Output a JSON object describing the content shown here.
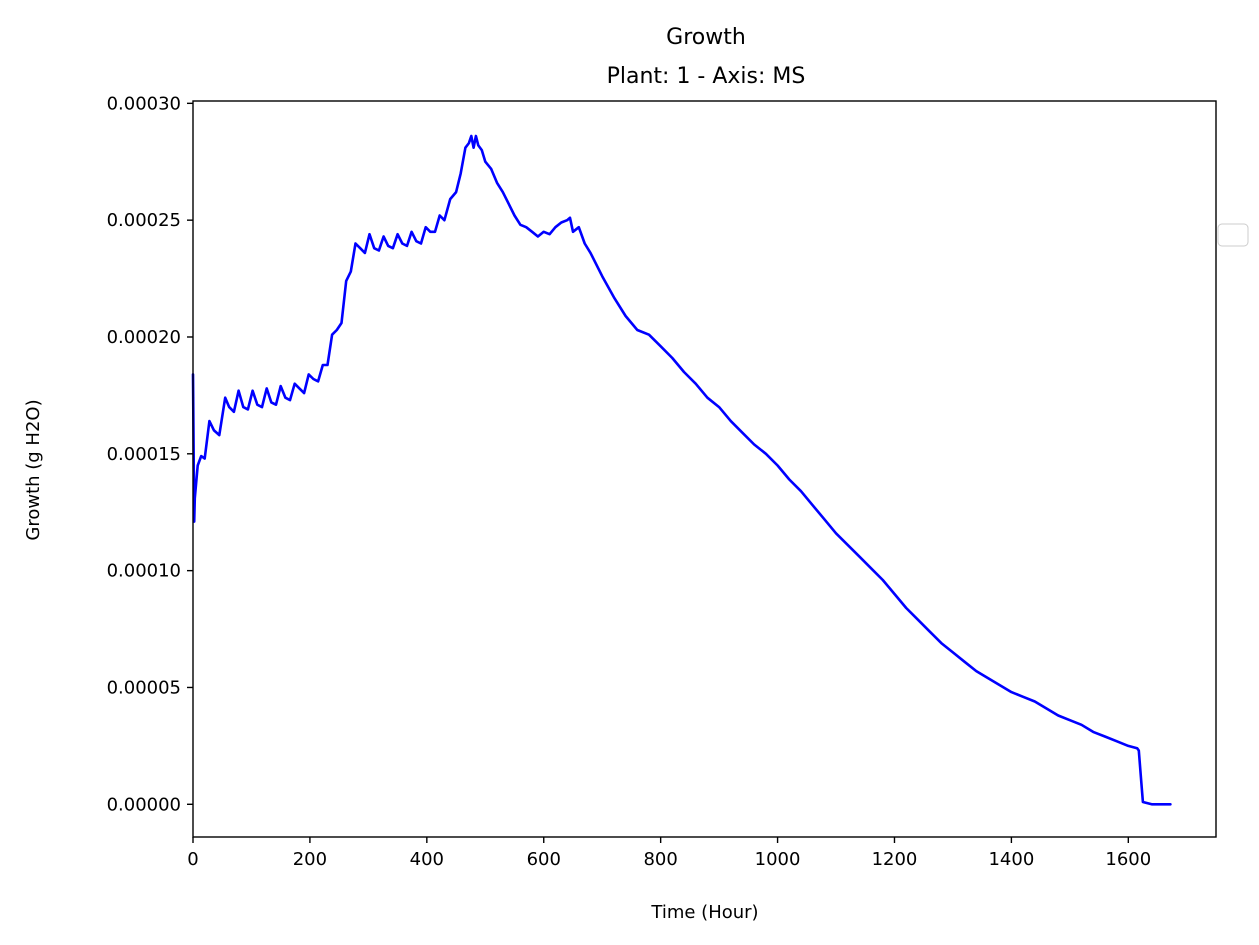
{
  "chart_data": {
    "type": "line",
    "title": "Growth",
    "subtitle": "Plant: 1 - Axis: MS",
    "xlabel": "Time (Hour)",
    "ylabel": "Growth (g H2O)",
    "xlim": [
      0,
      1750
    ],
    "ylim": [
      -1.4e-05,
      0.000301
    ],
    "xticks": [
      "0",
      "200",
      "400",
      "600",
      "800",
      "1000",
      "1200",
      "1400",
      "1600"
    ],
    "yticks": [
      "0.00000",
      "0.00005",
      "0.00010",
      "0.00015",
      "0.00020",
      "0.00025",
      "0.00030"
    ],
    "grid": false,
    "legend": {
      "position": "right",
      "entries": []
    },
    "series": [
      {
        "color": "#0000ff",
        "x": [
          0,
          2,
          3,
          8,
          14,
          20,
          28,
          36,
          45,
          55,
          62,
          70,
          78,
          86,
          94,
          102,
          110,
          118,
          126,
          134,
          142,
          150,
          158,
          166,
          174,
          182,
          190,
          198,
          206,
          214,
          222,
          230,
          238,
          246,
          254,
          262,
          270,
          278,
          286,
          294,
          302,
          310,
          318,
          326,
          334,
          342,
          350,
          358,
          366,
          374,
          382,
          390,
          398,
          406,
          414,
          422,
          430,
          440,
          450,
          458,
          466,
          472,
          476,
          480,
          484,
          488,
          494,
          500,
          510,
          520,
          530,
          540,
          550,
          560,
          570,
          580,
          590,
          600,
          610,
          620,
          630,
          640,
          645,
          650,
          660,
          670,
          680,
          700,
          720,
          740,
          760,
          780,
          800,
          820,
          840,
          860,
          880,
          900,
          920,
          940,
          960,
          980,
          1000,
          1020,
          1040,
          1060,
          1080,
          1100,
          1120,
          1140,
          1160,
          1180,
          1200,
          1220,
          1240,
          1260,
          1280,
          1300,
          1320,
          1340,
          1360,
          1380,
          1400,
          1420,
          1440,
          1460,
          1480,
          1500,
          1520,
          1540,
          1560,
          1580,
          1600,
          1615,
          1618,
          1622,
          1625,
          1640,
          1660,
          1672
        ],
        "y": [
          0.000184,
          0.000121,
          0.000131,
          0.000145,
          0.000149,
          0.000148,
          0.000164,
          0.00016,
          0.000158,
          0.000174,
          0.00017,
          0.000168,
          0.000177,
          0.00017,
          0.000169,
          0.000177,
          0.000171,
          0.00017,
          0.000178,
          0.000172,
          0.000171,
          0.000179,
          0.000174,
          0.000173,
          0.00018,
          0.000178,
          0.000176,
          0.000184,
          0.000182,
          0.000181,
          0.000188,
          0.000188,
          0.000201,
          0.000203,
          0.000206,
          0.000224,
          0.000228,
          0.00024,
          0.000238,
          0.000236,
          0.000244,
          0.000238,
          0.000237,
          0.000243,
          0.000239,
          0.000238,
          0.000244,
          0.00024,
          0.000239,
          0.000245,
          0.000241,
          0.00024,
          0.000247,
          0.000245,
          0.000245,
          0.000252,
          0.00025,
          0.000259,
          0.000262,
          0.00027,
          0.000281,
          0.000283,
          0.000286,
          0.000281,
          0.000286,
          0.000282,
          0.00028,
          0.000275,
          0.000272,
          0.000266,
          0.000262,
          0.000257,
          0.000252,
          0.000248,
          0.000247,
          0.000245,
          0.000243,
          0.000245,
          0.000244,
          0.000247,
          0.000249,
          0.00025,
          0.000251,
          0.000245,
          0.000247,
          0.00024,
          0.000236,
          0.000226,
          0.000217,
          0.000209,
          0.000203,
          0.000201,
          0.000196,
          0.000191,
          0.000185,
          0.00018,
          0.000174,
          0.00017,
          0.000164,
          0.000159,
          0.000154,
          0.00015,
          0.000145,
          0.000139,
          0.000134,
          0.000128,
          0.000122,
          0.000116,
          0.000111,
          0.000106,
          0.000101,
          9.6e-05,
          9e-05,
          8.4e-05,
          7.9e-05,
          7.4e-05,
          6.9e-05,
          6.5e-05,
          6.1e-05,
          5.7e-05,
          5.4e-05,
          5.1e-05,
          4.8e-05,
          4.6e-05,
          4.4e-05,
          4.1e-05,
          3.8e-05,
          3.6e-05,
          3.4e-05,
          3.1e-05,
          2.9e-05,
          2.7e-05,
          2.5e-05,
          2.4e-05,
          2.3e-05,
          1e-05,
          1e-06,
          0.0,
          0.0,
          0.0
        ]
      }
    ]
  }
}
